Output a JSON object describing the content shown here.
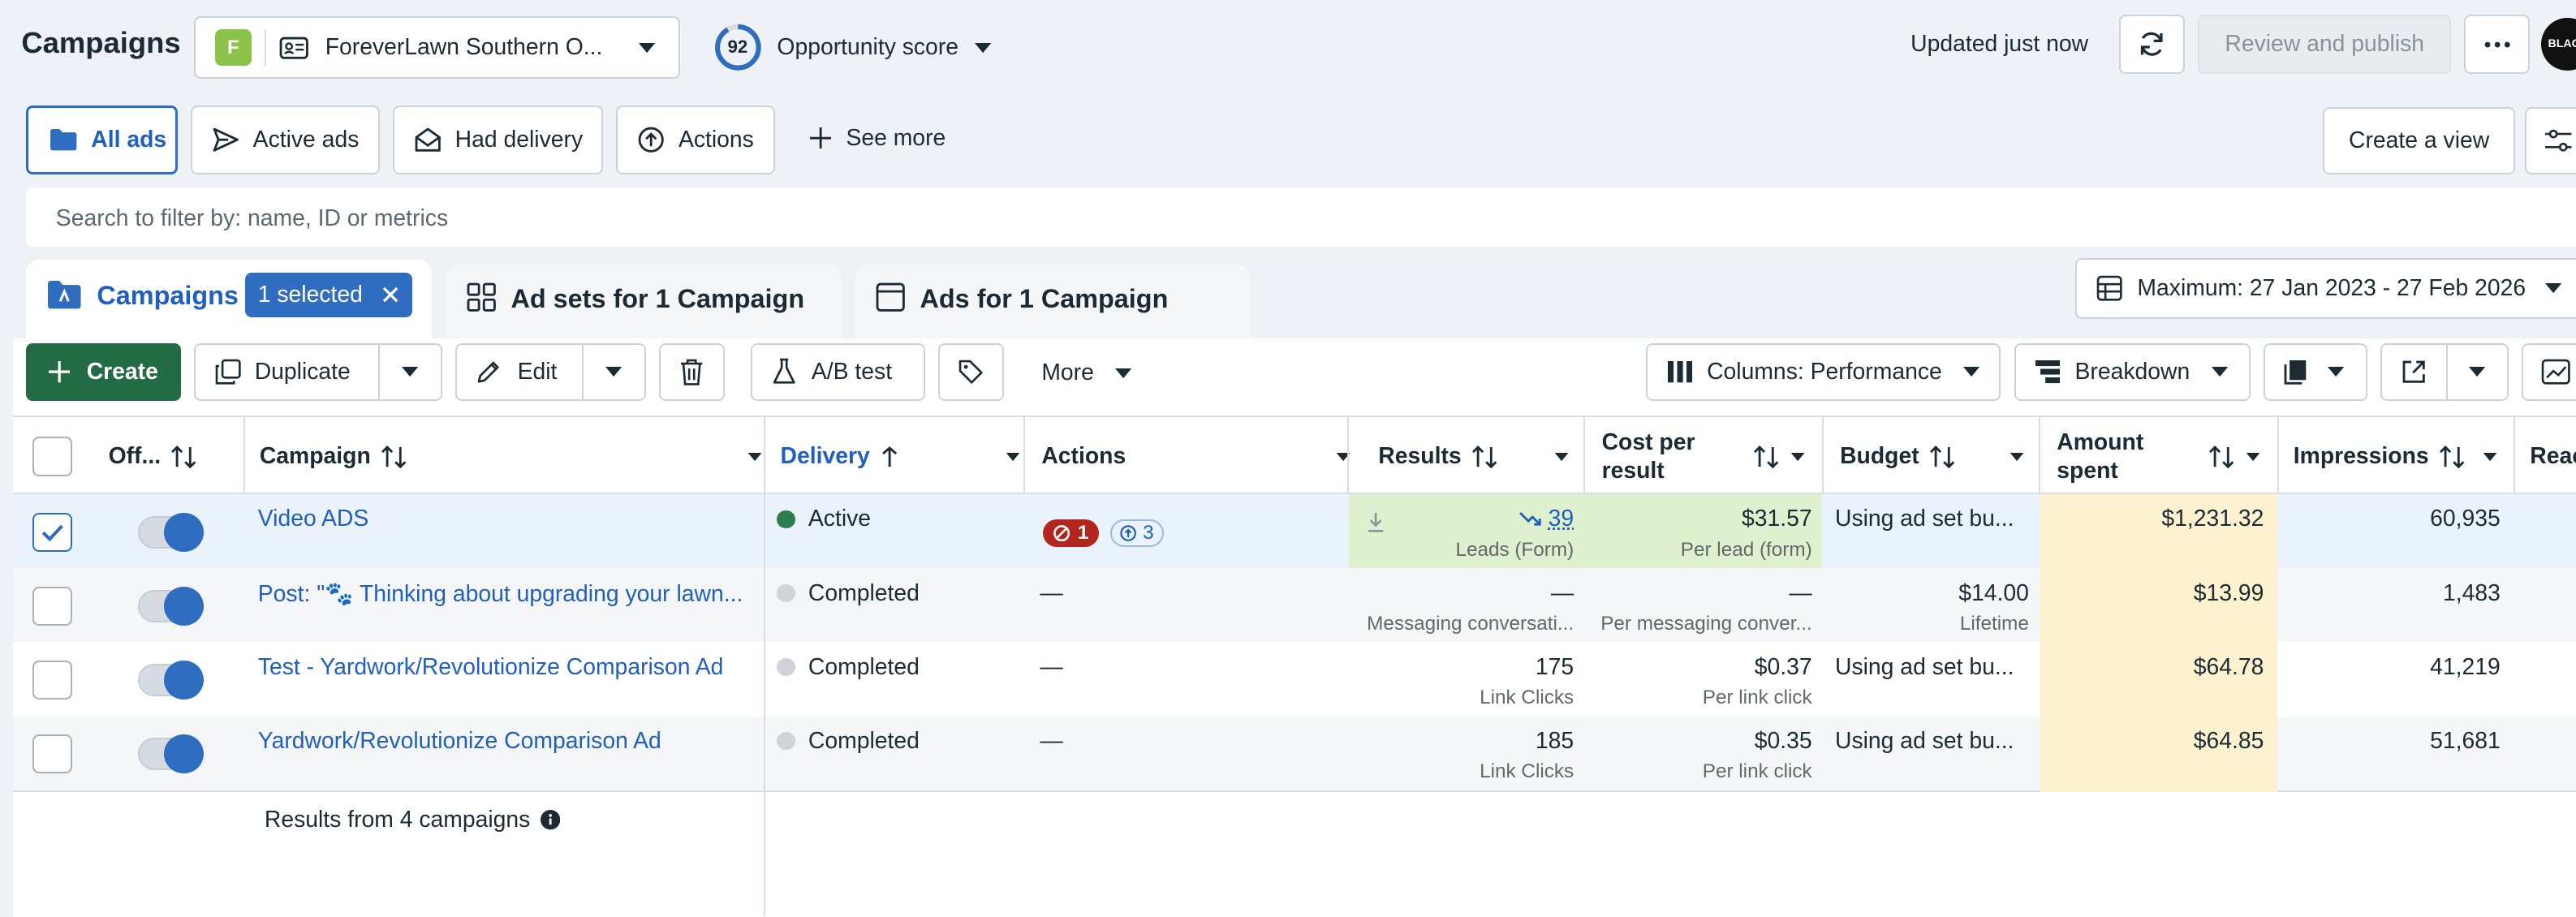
{
  "topbar": {
    "title": "Campaigns",
    "account_initial": "F",
    "account_name": "ForeverLawn Southern O...",
    "opportunity_score": "92",
    "opportunity_label": "Opportunity score",
    "updated": "Updated just now",
    "review_publish": "Review and publish",
    "avatar_text": "BLACK"
  },
  "filters": {
    "all_ads": "All ads",
    "active_ads": "Active ads",
    "had_delivery": "Had delivery",
    "actions": "Actions",
    "see_more": "See more",
    "create_view": "Create a view"
  },
  "search": {
    "placeholder": "Search to filter by: name, ID or metrics"
  },
  "tabs": {
    "campaigns": "Campaigns",
    "selected": "1 selected",
    "adsets": "Ad sets for 1 Campaign",
    "ads": "Ads for 1 Campaign",
    "date_range": "Maximum: 27 Jan 2023 - 27 Feb 2026"
  },
  "toolbar": {
    "create": "Create",
    "duplicate": "Duplicate",
    "edit": "Edit",
    "ab_test": "A/B test",
    "more": "More",
    "columns": "Columns: Performance",
    "breakdown": "Breakdown"
  },
  "table": {
    "headers": {
      "off": "Off...",
      "campaign": "Campaign",
      "delivery": "Delivery",
      "actions": "Actions",
      "results": "Results",
      "cost_line1": "Cost per",
      "cost_line2": "result",
      "budget": "Budget",
      "amount_line1": "Amount",
      "amount_line2": "spent",
      "impressions": "Impressions",
      "reach": "Reac"
    },
    "rows": [
      {
        "name": "Video ADS",
        "delivery": "Active",
        "actions_badge_red": "1",
        "actions_badge_blue": "3",
        "results": "39",
        "results_sub": "Leads (Form)",
        "cost": "$31.57",
        "cost_sub": "Per lead (form)",
        "budget": "Using ad set bu...",
        "budget_sub": "",
        "amount": "$1,231.32",
        "impressions": "60,935"
      },
      {
        "name": "Post: \"🐾 Thinking about upgrading your lawn...",
        "delivery": "Completed",
        "actions": "—",
        "results": "—",
        "results_sub": "Messaging conversati...",
        "cost": "—",
        "cost_sub": "Per messaging conver...",
        "budget": "$14.00",
        "budget_sub": "Lifetime",
        "amount": "$13.99",
        "impressions": "1,483"
      },
      {
        "name": "Test - Yardwork/Revolutionize Comparison Ad",
        "delivery": "Completed",
        "actions": "—",
        "results": "175",
        "results_sub": "Link Clicks",
        "cost": "$0.37",
        "cost_sub": "Per link click",
        "budget": "Using ad set bu...",
        "budget_sub": "",
        "amount": "$64.78",
        "impressions": "41,219"
      },
      {
        "name": "Yardwork/Revolutionize Comparison Ad",
        "delivery": "Completed",
        "actions": "—",
        "results": "185",
        "results_sub": "Link Clicks",
        "cost": "$0.35",
        "cost_sub": "Per link click",
        "budget": "Using ad set bu...",
        "budget_sub": "",
        "amount": "$64.85",
        "impressions": "51,681"
      }
    ],
    "footer": "Results from 4 campaigns"
  },
  "colors": {
    "accent_blue": "#1f5fbf",
    "create_green": "#236b45",
    "active_green": "#2e7d4f",
    "results_highlight": "#dff0cf",
    "amount_highlight": "#fdf2cf",
    "selected_row": "#eaf2fc",
    "badge_red": "#b3261e"
  }
}
